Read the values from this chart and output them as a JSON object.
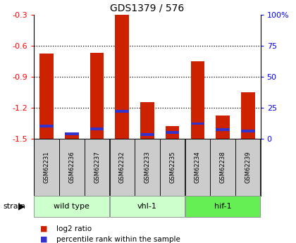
{
  "title": "GDS1379 / 576",
  "samples": [
    "GSM62231",
    "GSM62236",
    "GSM62237",
    "GSM62232",
    "GSM62233",
    "GSM62235",
    "GSM62234",
    "GSM62238",
    "GSM62239"
  ],
  "log2_ratio": [
    -0.68,
    -1.45,
    -0.67,
    -0.3,
    -1.15,
    -1.38,
    -0.75,
    -1.28,
    -1.05
  ],
  "pct_rank": [
    0.1,
    0.04,
    0.08,
    0.22,
    0.03,
    0.05,
    0.12,
    0.07,
    0.06
  ],
  "groups": [
    {
      "label": "wild type",
      "start": 0,
      "end": 3
    },
    {
      "label": "vhl-1",
      "start": 3,
      "end": 6
    },
    {
      "label": "hif-1",
      "start": 6,
      "end": 9
    }
  ],
  "group_colors": [
    "#ccffcc",
    "#ccffcc",
    "#66ee55"
  ],
  "ylim_left": [
    -1.5,
    -0.3
  ],
  "ylim_right": [
    0,
    100
  ],
  "yticks_left": [
    -1.5,
    -1.2,
    -0.9,
    -0.6,
    -0.3
  ],
  "yticks_right": [
    0,
    25,
    50,
    75,
    100
  ],
  "ytick_labels_right": [
    "0",
    "25",
    "50",
    "75",
    "100%"
  ],
  "bar_color_red": "#cc2200",
  "bar_color_blue": "#3333cc",
  "bg_color": "#ffffff",
  "label_bg": "#cccccc",
  "bar_width": 0.55
}
